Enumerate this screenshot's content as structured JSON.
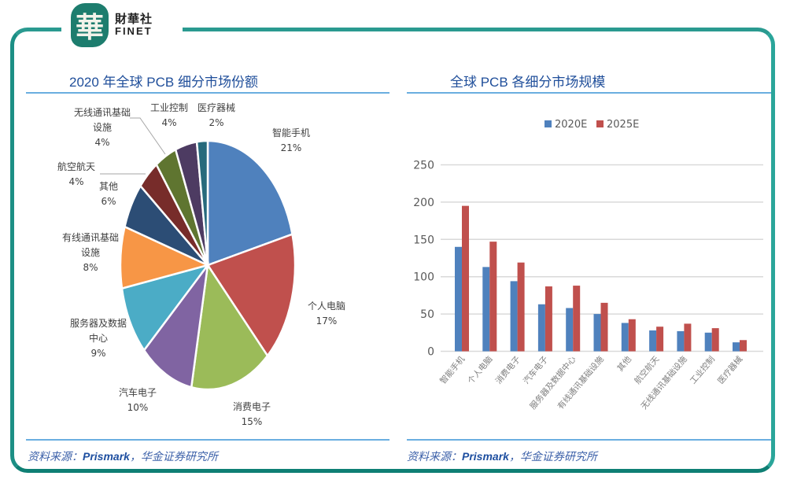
{
  "brand": {
    "logo_char": "華",
    "name_cn": "財華社",
    "name_en": "FINET"
  },
  "left_panel": {
    "title": "2020 年全球 PCB 细分市场份额",
    "source_prefix": "资料来源：",
    "source_bold": "Prismark",
    "source_suffix": "，华金证券研究所"
  },
  "right_panel": {
    "title": "全球 PCB 各细分市场规模",
    "source_prefix": "资料来源：",
    "source_bold": "Prismark",
    "source_suffix": "，华金证券研究所"
  },
  "chart_data": [
    {
      "type": "pie",
      "title": "2020 年全球 PCB 细分市场份额",
      "categories": [
        "智能手机",
        "个人电脑",
        "消费电子",
        "汽车电子",
        "服务器及数据中心",
        "有线通讯基础设施",
        "其他",
        "航空航天",
        "无线通讯基础设施",
        "工业控制",
        "医疗器械"
      ],
      "values": [
        21,
        17,
        15,
        10,
        9,
        8,
        6,
        4,
        4,
        4,
        2
      ],
      "value_labels": [
        "21%",
        "17%",
        "15%",
        "10%",
        "9%",
        "8%",
        "6%",
        "4%",
        "4%",
        "4%",
        "2%"
      ],
      "colors": [
        "#4f81bd",
        "#c0504d",
        "#9bbb59",
        "#8064a2",
        "#4bacc6",
        "#f79646",
        "#2c4d75",
        "#772c2a",
        "#5f7530",
        "#4d3b62",
        "#276a7c"
      ]
    },
    {
      "type": "bar",
      "title": "全球 PCB 各细分市场规模",
      "categories": [
        "智能手机",
        "个人电脑",
        "消费电子",
        "汽车电子",
        "服务器及数据中心",
        "有线通讯基础设施",
        "其他",
        "航空航天",
        "无线通讯基础设施",
        "工业控制",
        "医疗器械"
      ],
      "series": [
        {
          "name": "2020E",
          "color": "#4f81bd",
          "values": [
            140,
            113,
            94,
            63,
            58,
            50,
            38,
            28,
            27,
            25,
            12
          ]
        },
        {
          "name": "2025E",
          "color": "#c0504d",
          "values": [
            195,
            147,
            119,
            87,
            88,
            65,
            43,
            33,
            37,
            31,
            15
          ]
        }
      ],
      "yticks": [
        0,
        50,
        100,
        150,
        200,
        250
      ],
      "ylim": [
        0,
        250
      ],
      "grid": true,
      "legend_position": "top",
      "xlabel": "",
      "ylabel": ""
    }
  ]
}
